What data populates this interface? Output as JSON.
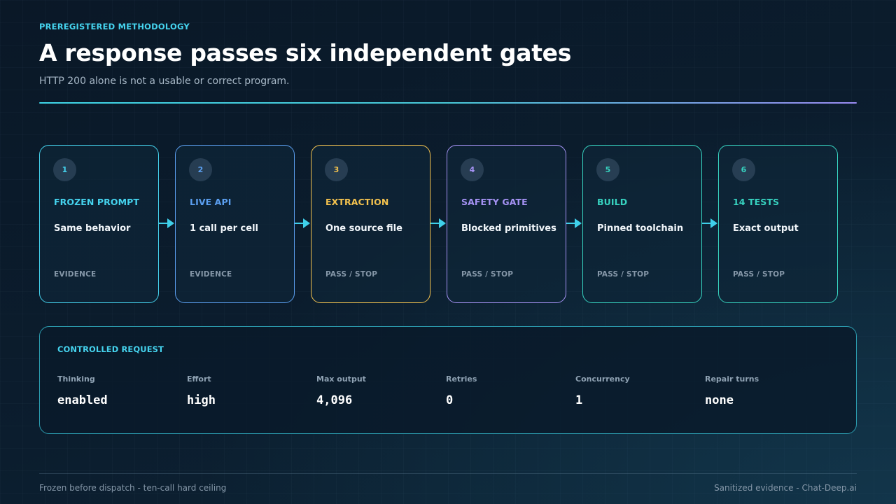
{
  "header": {
    "eyebrow": "PREREGISTERED METHODOLOGY",
    "title": "A response passes six independent gates",
    "subtitle": "HTTP 200 alone is not a usable or correct program."
  },
  "gates": [
    {
      "number": "1",
      "name": "FROZEN PROMPT",
      "description": "Same behavior",
      "footer": "EVIDENCE",
      "color": "#45d3ee"
    },
    {
      "number": "2",
      "name": "LIVE API",
      "description": "1 call per cell",
      "footer": "EVIDENCE",
      "color": "#5b9ff0"
    },
    {
      "number": "3",
      "name": "EXTRACTION",
      "description": "One source file",
      "footer": "PASS / STOP",
      "color": "#f2c14e"
    },
    {
      "number": "4",
      "name": "SAFETY GATE",
      "description": "Blocked primitives",
      "footer": "PASS / STOP",
      "color": "#a592f4"
    },
    {
      "number": "5",
      "name": "BUILD",
      "description": "Pinned toolchain",
      "footer": "PASS / STOP",
      "color": "#37d3c0"
    },
    {
      "number": "6",
      "name": "14 TESTS",
      "description": "Exact output",
      "footer": "PASS / STOP",
      "color": "#37d3c0"
    }
  ],
  "controlled_request": {
    "title": "CONTROLLED REQUEST",
    "params": [
      {
        "label": "Thinking",
        "value": "enabled"
      },
      {
        "label": "Effort",
        "value": "high"
      },
      {
        "label": "Max output",
        "value": "4,096"
      },
      {
        "label": "Retries",
        "value": "0"
      },
      {
        "label": "Concurrency",
        "value": "1"
      },
      {
        "label": "Repair turns",
        "value": "none"
      }
    ]
  },
  "footer": {
    "left": "Frozen before dispatch - ten-call hard ceiling",
    "right": "Sanitized evidence - Chat-Deep.ai"
  },
  "colors": {
    "accent": "#45d3ee",
    "arrow": "#3fd0ea"
  }
}
